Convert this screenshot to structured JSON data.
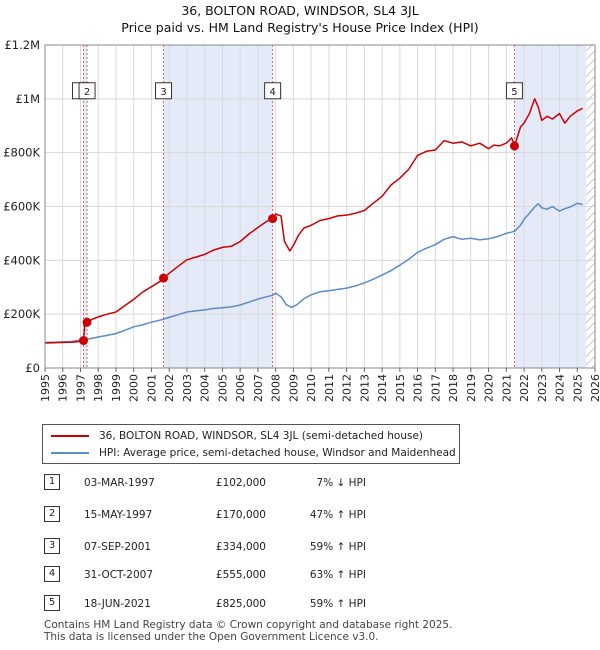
{
  "header": {
    "title_line1": "36, BOLTON ROAD, WINDSOR, SL4 3JL",
    "title_line2": "Price paid vs. HM Land Registry's House Price Index (HPI)"
  },
  "chart_data": {
    "type": "line",
    "title": "36, BOLTON ROAD, WINDSOR, SL4 3JL — Price paid vs. HM Land Registry's House Price Index (HPI)",
    "xlabel": "",
    "ylabel": "",
    "xlim": [
      1995,
      2026
    ],
    "ylim": [
      0,
      1200000
    ],
    "x_ticks": [
      1995,
      1996,
      1997,
      1998,
      1999,
      2000,
      2001,
      2002,
      2003,
      2004,
      2005,
      2006,
      2007,
      2008,
      2009,
      2010,
      2011,
      2012,
      2013,
      2014,
      2015,
      2016,
      2017,
      2018,
      2019,
      2020,
      2021,
      2022,
      2023,
      2024,
      2025,
      2026
    ],
    "y_ticks": [
      {
        "value": 0,
        "label": "£0"
      },
      {
        "value": 200000,
        "label": "£200K"
      },
      {
        "value": 400000,
        "label": "£400K"
      },
      {
        "value": 600000,
        "label": "£600K"
      },
      {
        "value": 800000,
        "label": "£800K"
      },
      {
        "value": 1000000,
        "label": "£1M"
      },
      {
        "value": 1200000,
        "label": "£1.2M"
      }
    ],
    "grid": true,
    "shaded_periods": [
      [
        1997.17,
        1997.37
      ],
      [
        2001.68,
        2007.83
      ],
      [
        2021.46,
        2025.5
      ]
    ],
    "hatched_region": [
      2025.5,
      2026
    ],
    "series": [
      {
        "name": "36, BOLTON ROAD, WINDSOR, SL4 3JL (semi-detached house)",
        "color": "#cc0000",
        "x": [
          1995,
          1995.5,
          1996,
          1996.5,
          1997,
          1997.17,
          1997.25,
          1997.37,
          1997.7,
          1998,
          1998.5,
          1999,
          1999.5,
          2000,
          2000.5,
          2001,
          2001.5,
          2001.68,
          2002,
          2002.5,
          2003,
          2003.5,
          2004,
          2004.5,
          2005,
          2005.5,
          2006,
          2006.5,
          2007,
          2007.5,
          2007.83,
          2008,
          2008.3,
          2008.5,
          2008.8,
          2009,
          2009.3,
          2009.6,
          2010,
          2010.5,
          2011,
          2011.5,
          2012,
          2012.5,
          2013,
          2013.5,
          2014,
          2014.5,
          2015,
          2015.5,
          2016,
          2016.5,
          2017,
          2017.5,
          2018,
          2018.5,
          2019,
          2019.5,
          2020,
          2020.3,
          2020.6,
          2021,
          2021.3,
          2021.46,
          2021.8,
          2022,
          2022.3,
          2022.6,
          2022.8,
          2023,
          2023.3,
          2023.6,
          2024,
          2024.3,
          2024.6,
          2025,
          2025.3
        ],
        "y": [
          93000,
          94000,
          95000,
          96000,
          99000,
          102000,
          160000,
          170000,
          182000,
          190000,
          200000,
          208000,
          232000,
          255000,
          282000,
          302000,
          322000,
          334000,
          352000,
          378000,
          402000,
          412000,
          422000,
          438000,
          448000,
          452000,
          470000,
          498000,
          522000,
          545000,
          555000,
          572000,
          565000,
          470000,
          435000,
          455000,
          495000,
          520000,
          530000,
          548000,
          555000,
          565000,
          568000,
          575000,
          585000,
          612000,
          638000,
          680000,
          705000,
          738000,
          790000,
          805000,
          810000,
          845000,
          835000,
          840000,
          825000,
          835000,
          815000,
          828000,
          825000,
          835000,
          855000,
          825000,
          895000,
          910000,
          945000,
          1000000,
          970000,
          920000,
          935000,
          925000,
          945000,
          910000,
          935000,
          955000,
          965000
        ]
      },
      {
        "name": "HPI: Average price, semi-detached house, Windsor and Maidenhead",
        "color": "#5b8cc8",
        "x": [
          1995,
          1995.5,
          1996,
          1996.5,
          1997,
          1997.5,
          1998,
          1998.5,
          1999,
          1999.5,
          2000,
          2000.5,
          2001,
          2001.5,
          2002,
          2002.5,
          2003,
          2003.5,
          2004,
          2004.5,
          2005,
          2005.5,
          2006,
          2006.5,
          2007,
          2007.5,
          2007.83,
          2008,
          2008.3,
          2008.6,
          2008.9,
          2009.2,
          2009.6,
          2010,
          2010.5,
          2011,
          2011.5,
          2012,
          2012.5,
          2013,
          2013.5,
          2014,
          2014.5,
          2015,
          2015.5,
          2016,
          2016.5,
          2017,
          2017.5,
          2018,
          2018.5,
          2019,
          2019.5,
          2020,
          2020.5,
          2021,
          2021.46,
          2021.8,
          2022,
          2022.3,
          2022.6,
          2022.8,
          2023,
          2023.3,
          2023.6,
          2024,
          2024.3,
          2024.6,
          2025,
          2025.3
        ],
        "y": [
          95000,
          96000,
          97000,
          99000,
          103000,
          108000,
          115000,
          121000,
          128000,
          140000,
          153000,
          160000,
          170000,
          178000,
          188000,
          198000,
          208000,
          212000,
          216000,
          221000,
          224000,
          227000,
          234000,
          245000,
          256000,
          265000,
          270000,
          278000,
          265000,
          235000,
          225000,
          235000,
          258000,
          272000,
          283000,
          287000,
          292000,
          297000,
          305000,
          316000,
          330000,
          345000,
          362000,
          382000,
          404000,
          430000,
          445000,
          458000,
          478000,
          488000,
          478000,
          482000,
          476000,
          480000,
          488000,
          500000,
          508000,
          530000,
          552000,
          575000,
          598000,
          610000,
          595000,
          590000,
          600000,
          583000,
          592000,
          598000,
          612000,
          607000
        ]
      }
    ],
    "transactions": [
      {
        "id": "1",
        "date": "03-MAR-1997",
        "price_label": "£102,000",
        "hpi_label": "7% ↓ HPI",
        "x": 1997.17,
        "value": 102000
      },
      {
        "id": "2",
        "date": "15-MAY-1997",
        "price_label": "£170,000",
        "hpi_label": "47% ↑ HPI",
        "x": 1997.37,
        "value": 170000
      },
      {
        "id": "3",
        "date": "07-SEP-2001",
        "price_label": "£334,000",
        "hpi_label": "59% ↑ HPI",
        "x": 2001.68,
        "value": 334000
      },
      {
        "id": "4",
        "date": "31-OCT-2007",
        "price_label": "£555,000",
        "hpi_label": "63% ↑ HPI",
        "x": 2007.83,
        "value": 555000
      },
      {
        "id": "5",
        "date": "18-JUN-2021",
        "price_label": "£825,000",
        "hpi_label": "59% ↑ HPI",
        "x": 2021.46,
        "value": 825000
      }
    ],
    "marker_labels": [
      {
        "id": "1",
        "x": 1997.0,
        "value": 1030000
      },
      {
        "id": "2",
        "x": 1997.37,
        "value": 1030000
      },
      {
        "id": "3",
        "x": 2001.68,
        "value": 1030000
      },
      {
        "id": "4",
        "x": 2007.83,
        "value": 1030000
      },
      {
        "id": "5",
        "x": 2021.46,
        "value": 1030000
      }
    ]
  },
  "legend": {
    "items": [
      {
        "label": "36, BOLTON ROAD, WINDSOR, SL4 3JL (semi-detached house)",
        "color": "#cc0000"
      },
      {
        "label": "HPI: Average price, semi-detached house, Windsor and Maidenhead",
        "color": "#5b8cc8"
      }
    ]
  },
  "footer": {
    "line1": "Contains HM Land Registry data © Crown copyright and database right 2025.",
    "line2": "This data is licensed under the Open Government Licence v3.0."
  }
}
